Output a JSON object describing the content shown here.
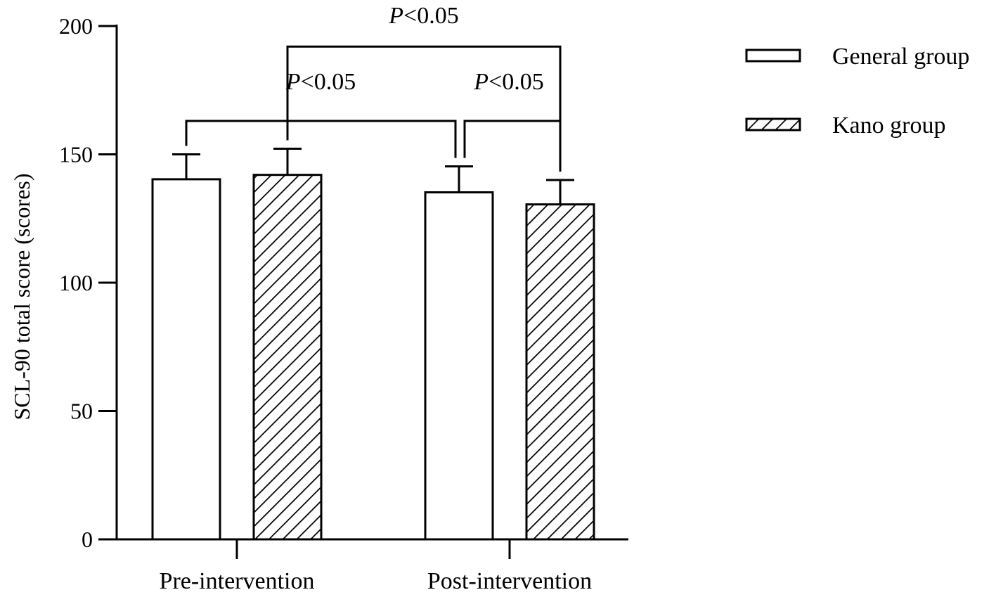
{
  "chart_data": {
    "type": "bar",
    "categories": [
      "Pre-intervention",
      "Post-intervention"
    ],
    "series": [
      {
        "name": "General group",
        "pattern": "open",
        "values": [
          140.3,
          135.2
        ],
        "errors": [
          9.7,
          10.1
        ]
      },
      {
        "name": "Kano group",
        "pattern": "hatched",
        "values": [
          142.0,
          130.5
        ],
        "errors": [
          10.2,
          9.5
        ]
      }
    ],
    "ylabel": "SCL-90 total score (scores)",
    "ylim": [
      0,
      200
    ],
    "yticks": [
      0,
      50,
      100,
      150,
      200
    ],
    "grid": false,
    "legend": "top-right",
    "annotations": [
      {
        "from": {
          "category": 0,
          "series": 0
        },
        "to": {
          "category": 1,
          "series": 0
        },
        "p_symbol": "P",
        "p_rest": "<0.05",
        "level": 163
      },
      {
        "from": {
          "category": 1,
          "series": 0
        },
        "to": {
          "category": 1,
          "series": 1
        },
        "p_symbol": "P",
        "p_rest": "<0.05",
        "level": 163
      },
      {
        "from": {
          "category": 0,
          "series": 1
        },
        "to": {
          "category": 1,
          "series": 1
        },
        "p_symbol": "P",
        "p_rest": "<0.05",
        "level": 192
      }
    ],
    "colors": {
      "axis": "#000000",
      "bar_fill": "#ffffff",
      "hatch": "#000000"
    }
  }
}
